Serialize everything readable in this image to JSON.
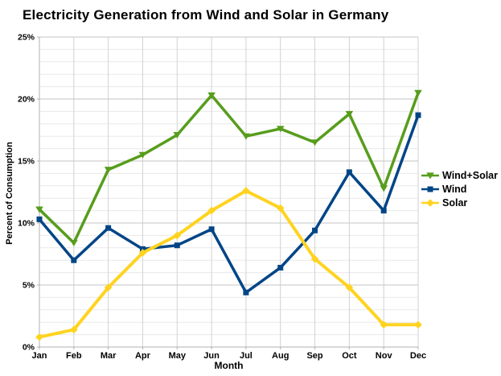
{
  "chart_data": {
    "type": "line",
    "title": "Electricity Generation from Wind and Solar in Germany",
    "xlabel": "Month",
    "ylabel": "Percent of Consumption",
    "categories": [
      "Jan",
      "Feb",
      "Mar",
      "Apr",
      "May",
      "Jun",
      "Jul",
      "Aug",
      "Sep",
      "Oct",
      "Nov",
      "Dec"
    ],
    "ylim": [
      0,
      25
    ],
    "y_major_step": 5,
    "y_minor_step": 1,
    "y_tick_labels": [
      "0%",
      "5%",
      "10%",
      "15%",
      "20%",
      "25%"
    ],
    "grid": true,
    "legend_position": "right",
    "series": [
      {
        "name": "Wind+Solar",
        "color": "#579D1C",
        "marker": "triangle-down",
        "values": [
          11.1,
          8.4,
          14.3,
          15.5,
          17.1,
          20.3,
          17.0,
          17.6,
          16.5,
          18.8,
          12.8,
          20.5
        ]
      },
      {
        "name": "Wind",
        "color": "#004586",
        "marker": "square",
        "values": [
          10.3,
          7.0,
          9.6,
          7.9,
          8.2,
          9.5,
          4.4,
          6.4,
          9.4,
          14.1,
          11.0,
          18.7
        ]
      },
      {
        "name": "Solar",
        "color": "#FFD320",
        "marker": "diamond",
        "values": [
          0.8,
          1.4,
          4.8,
          7.6,
          9.0,
          11.0,
          12.6,
          11.2,
          7.1,
          4.8,
          1.8,
          1.8
        ]
      }
    ],
    "colors": {
      "axis": "#b0b0b0",
      "grid_major": "#c6c6c6",
      "grid_minor": "#e9e9e9",
      "grid_vertical": "#d2d2d2",
      "text": "#000000"
    }
  }
}
